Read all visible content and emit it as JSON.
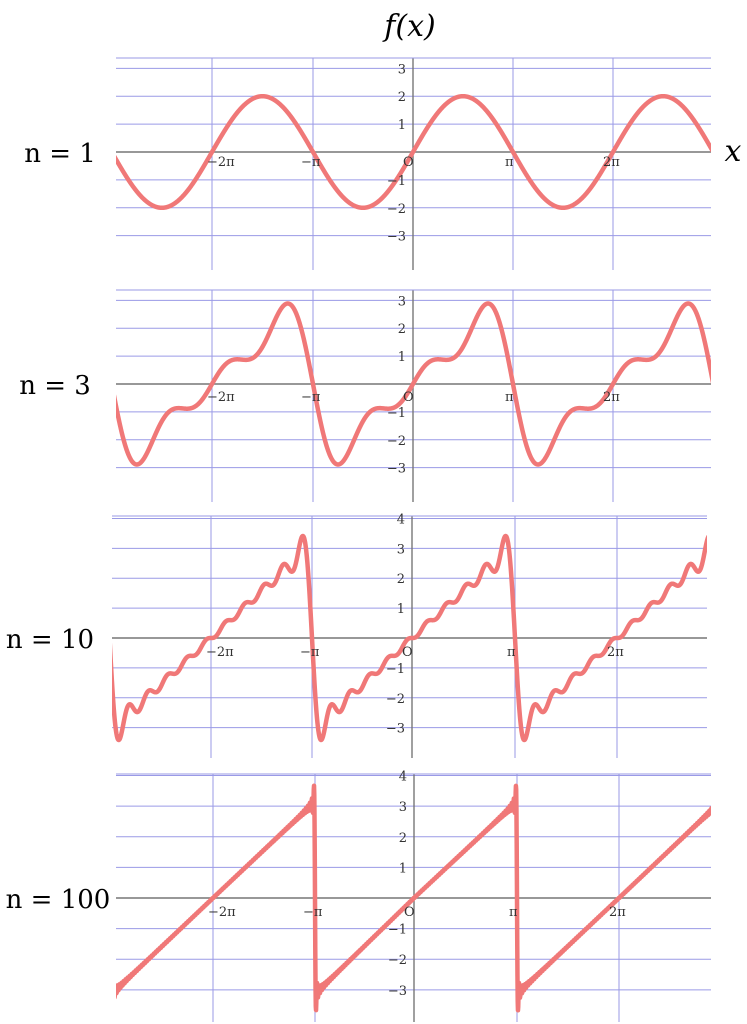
{
  "figure": {
    "title": "f(x)",
    "x_axis_label": "x"
  },
  "chart_data": [
    {
      "type": "line",
      "panel_label": "n = 1",
      "n": 1,
      "xlim": [
        -9.42,
        9.42
      ],
      "ylim": [
        -3.8,
        3.8
      ],
      "x_ticks": [
        "−2π",
        "−π",
        "O",
        "π",
        "2π"
      ],
      "y_ticks": [
        "3",
        "2",
        "1",
        "−1",
        "−2",
        "−3"
      ],
      "y_tick_values": [
        3,
        2,
        1,
        -1,
        -2,
        -3
      ],
      "series": [
        {
          "function": "partial Fourier sum of sawtooth f(x)=x on (−π, π)",
          "color": "#f07878"
        }
      ]
    },
    {
      "type": "line",
      "panel_label": "n = 3",
      "n": 3,
      "xlim": [
        -9.42,
        9.42
      ],
      "ylim": [
        -3.8,
        3.8
      ],
      "x_ticks": [
        "−2π",
        "−π",
        "O",
        "π",
        "2π"
      ],
      "y_ticks": [
        "3",
        "2",
        "1",
        "−1",
        "−2",
        "−3"
      ],
      "y_tick_values": [
        3,
        2,
        1,
        -1,
        -2,
        -3
      ],
      "series": [
        {
          "function": "partial Fourier sum of sawtooth f(x)=x on (−π, π)",
          "color": "#f07878"
        }
      ]
    },
    {
      "type": "line",
      "panel_label": "n = 10",
      "n": 10,
      "xlim": [
        -9.42,
        9.42
      ],
      "ylim": [
        -3.8,
        4.3
      ],
      "x_ticks": [
        "−2π",
        "−π",
        "O",
        "π",
        "2π"
      ],
      "y_ticks": [
        "4",
        "3",
        "2",
        "1",
        "−1",
        "−2",
        "−3"
      ],
      "y_tick_values": [
        4,
        3,
        2,
        1,
        -1,
        -2,
        -3
      ],
      "series": [
        {
          "function": "partial Fourier sum of sawtooth f(x)=x on (−π, π)",
          "color": "#f07878"
        }
      ]
    },
    {
      "type": "line",
      "panel_label": "n = 100",
      "n": 100,
      "xlim": [
        -9.42,
        9.42
      ],
      "ylim": [
        -3.8,
        4.3
      ],
      "x_ticks": [
        "−2π",
        "−π",
        "O",
        "π",
        "2π"
      ],
      "y_ticks": [
        "4",
        "3",
        "2",
        "1",
        "−1",
        "−2",
        "−3"
      ],
      "y_tick_values": [
        4,
        3,
        2,
        1,
        -1,
        -2,
        -3
      ],
      "series": [
        {
          "function": "partial Fourier sum of sawtooth f(x)=x on (−π, π)",
          "color": "#f07878"
        }
      ]
    }
  ]
}
